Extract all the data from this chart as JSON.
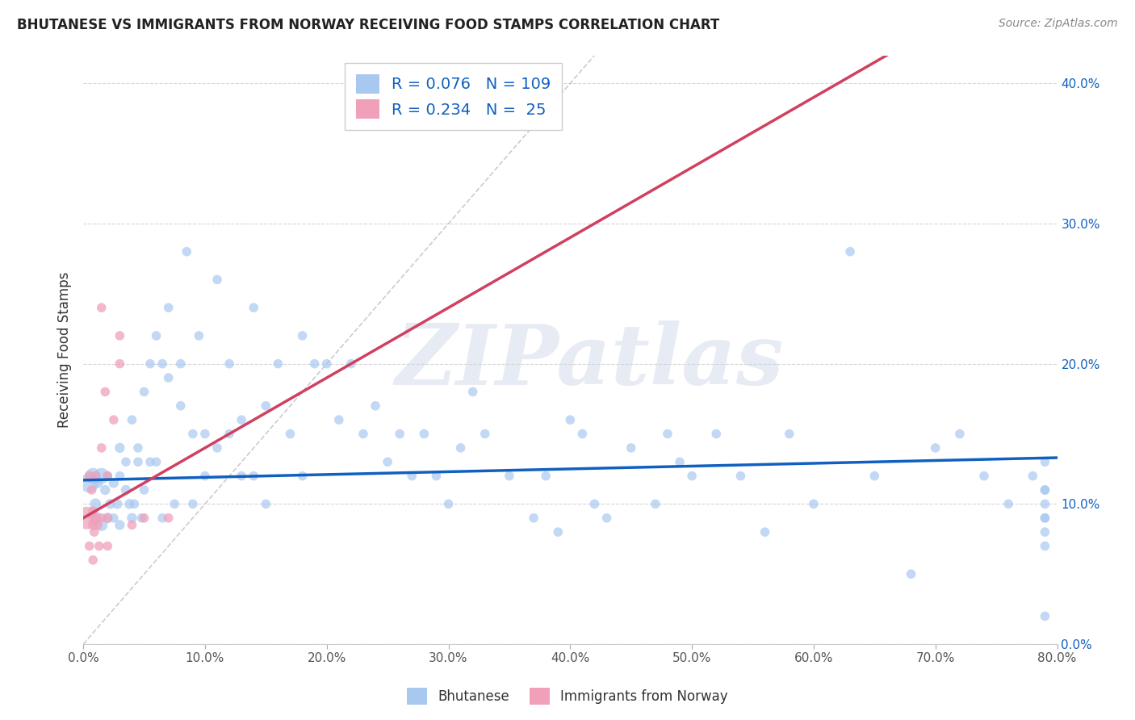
{
  "title": "BHUTANESE VS IMMIGRANTS FROM NORWAY RECEIVING FOOD STAMPS CORRELATION CHART",
  "source": "Source: ZipAtlas.com",
  "ylabel": "Receiving Food Stamps",
  "watermark": "ZIPatlas",
  "blue_R": 0.076,
  "blue_N": 109,
  "pink_R": 0.234,
  "pink_N": 25,
  "blue_color": "#A8C8F0",
  "pink_color": "#F0A0B8",
  "blue_line_color": "#1060C0",
  "pink_line_color": "#D04060",
  "bg_color": "#FFFFFF",
  "xlim": [
    0.0,
    0.8
  ],
  "ylim": [
    0.0,
    0.42
  ],
  "xticks": [
    0.0,
    0.1,
    0.2,
    0.3,
    0.4,
    0.5,
    0.6,
    0.7,
    0.8
  ],
  "yticks": [
    0.0,
    0.1,
    0.2,
    0.3,
    0.4
  ],
  "legend_label_blue": "Bhutanese",
  "legend_label_pink": "Immigrants from Norway",
  "blue_x": [
    0.005,
    0.008,
    0.01,
    0.01,
    0.012,
    0.015,
    0.015,
    0.018,
    0.02,
    0.02,
    0.022,
    0.025,
    0.025,
    0.028,
    0.03,
    0.03,
    0.03,
    0.035,
    0.035,
    0.038,
    0.04,
    0.04,
    0.042,
    0.045,
    0.045,
    0.048,
    0.05,
    0.05,
    0.055,
    0.055,
    0.06,
    0.06,
    0.065,
    0.065,
    0.07,
    0.07,
    0.075,
    0.08,
    0.08,
    0.085,
    0.09,
    0.09,
    0.095,
    0.1,
    0.1,
    0.11,
    0.11,
    0.12,
    0.12,
    0.13,
    0.13,
    0.14,
    0.14,
    0.15,
    0.15,
    0.16,
    0.17,
    0.18,
    0.18,
    0.19,
    0.2,
    0.21,
    0.22,
    0.23,
    0.24,
    0.25,
    0.26,
    0.27,
    0.28,
    0.29,
    0.3,
    0.31,
    0.32,
    0.33,
    0.35,
    0.37,
    0.38,
    0.39,
    0.4,
    0.41,
    0.42,
    0.43,
    0.45,
    0.47,
    0.48,
    0.49,
    0.5,
    0.52,
    0.54,
    0.56,
    0.58,
    0.6,
    0.63,
    0.65,
    0.68,
    0.7,
    0.72,
    0.74,
    0.76,
    0.78,
    0.79,
    0.79,
    0.79,
    0.79,
    0.79,
    0.79,
    0.79,
    0.79,
    0.79
  ],
  "blue_y": [
    0.115,
    0.12,
    0.09,
    0.1,
    0.115,
    0.12,
    0.085,
    0.11,
    0.12,
    0.09,
    0.1,
    0.115,
    0.09,
    0.1,
    0.14,
    0.12,
    0.085,
    0.11,
    0.13,
    0.1,
    0.16,
    0.09,
    0.1,
    0.14,
    0.13,
    0.09,
    0.18,
    0.11,
    0.2,
    0.13,
    0.22,
    0.13,
    0.2,
    0.09,
    0.19,
    0.24,
    0.1,
    0.17,
    0.2,
    0.28,
    0.15,
    0.1,
    0.22,
    0.12,
    0.15,
    0.26,
    0.14,
    0.2,
    0.15,
    0.16,
    0.12,
    0.24,
    0.12,
    0.17,
    0.1,
    0.2,
    0.15,
    0.22,
    0.12,
    0.2,
    0.2,
    0.16,
    0.2,
    0.15,
    0.17,
    0.13,
    0.15,
    0.12,
    0.15,
    0.12,
    0.1,
    0.14,
    0.18,
    0.15,
    0.12,
    0.09,
    0.12,
    0.08,
    0.16,
    0.15,
    0.1,
    0.09,
    0.14,
    0.1,
    0.15,
    0.13,
    0.12,
    0.15,
    0.12,
    0.08,
    0.15,
    0.1,
    0.28,
    0.12,
    0.05,
    0.14,
    0.15,
    0.12,
    0.1,
    0.12,
    0.13,
    0.11,
    0.09,
    0.11,
    0.1,
    0.09,
    0.08,
    0.07,
    0.02
  ],
  "blue_sizes": [
    300,
    200,
    150,
    100,
    80,
    200,
    120,
    80,
    70,
    90,
    80,
    80,
    70,
    80,
    80,
    70,
    80,
    80,
    70,
    80,
    70,
    80,
    70,
    70,
    70,
    70,
    70,
    70,
    70,
    70,
    70,
    70,
    70,
    70,
    70,
    70,
    70,
    70,
    70,
    70,
    70,
    70,
    70,
    70,
    70,
    70,
    70,
    70,
    70,
    70,
    70,
    70,
    70,
    70,
    70,
    70,
    70,
    70,
    70,
    70,
    70,
    70,
    70,
    70,
    70,
    70,
    70,
    70,
    70,
    70,
    70,
    70,
    70,
    70,
    70,
    70,
    70,
    70,
    70,
    70,
    70,
    70,
    70,
    70,
    70,
    70,
    70,
    70,
    70,
    70,
    70,
    70,
    70,
    70,
    70,
    70,
    70,
    70,
    70,
    70,
    70,
    70,
    70,
    70,
    70,
    70,
    70,
    70,
    70
  ],
  "pink_x": [
    0.003,
    0.005,
    0.005,
    0.007,
    0.008,
    0.008,
    0.008,
    0.009,
    0.01,
    0.01,
    0.012,
    0.013,
    0.015,
    0.015,
    0.015,
    0.018,
    0.02,
    0.02,
    0.02,
    0.025,
    0.03,
    0.03,
    0.04,
    0.05,
    0.07
  ],
  "pink_y": [
    0.09,
    0.12,
    0.07,
    0.11,
    0.085,
    0.095,
    0.06,
    0.08,
    0.12,
    0.09,
    0.085,
    0.07,
    0.24,
    0.14,
    0.09,
    0.18,
    0.12,
    0.09,
    0.07,
    0.16,
    0.22,
    0.2,
    0.085,
    0.09,
    0.09
  ],
  "pink_sizes": [
    400,
    80,
    70,
    70,
    80,
    70,
    70,
    70,
    70,
    70,
    70,
    70,
    70,
    70,
    70,
    70,
    70,
    70,
    70,
    70,
    70,
    70,
    70,
    70,
    70
  ]
}
